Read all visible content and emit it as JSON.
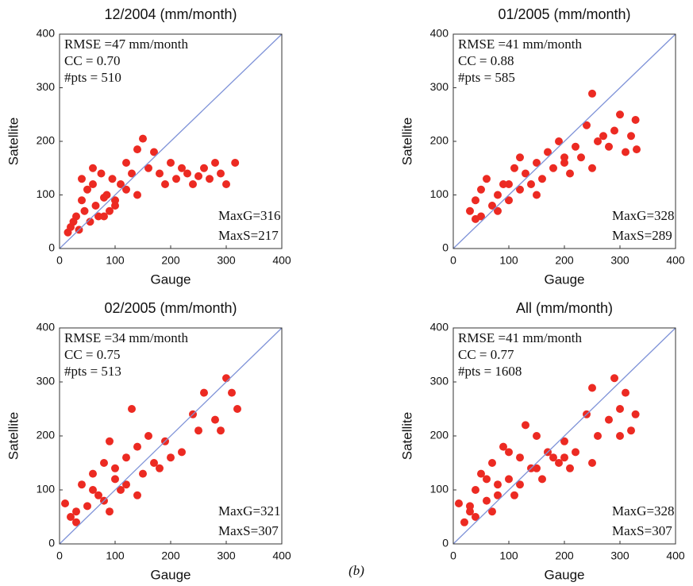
{
  "chart_data": [
    {
      "type": "scatter",
      "title": "12/2004 (mm/month)",
      "xlabel": "Gauge",
      "ylabel": "Satellite",
      "annotations": [
        "RMSE =47 mm/month",
        "CC = 0.70",
        "#pts = 510",
        "MaxG=316",
        "MaxS=217"
      ],
      "xlim": [
        0,
        400
      ],
      "ylim": [
        0,
        400
      ],
      "xticks": [
        0,
        100,
        200,
        300,
        400
      ],
      "yticks": [
        0,
        100,
        200,
        300,
        400
      ],
      "color": "#ec2a22",
      "line_color": "#7f93d8",
      "series": [
        {
          "x": [
            20,
            30,
            35,
            40,
            45,
            50,
            55,
            60,
            65,
            70,
            75,
            80,
            85,
            90,
            95,
            100,
            110,
            120,
            130,
            140,
            150,
            160,
            170,
            180,
            190,
            200,
            210,
            220,
            230,
            240,
            250,
            260,
            270,
            280,
            290,
            300,
            316,
            40,
            60,
            80,
            100,
            120,
            140,
            15,
            25
          ],
          "values": [
            40,
            60,
            35,
            90,
            70,
            110,
            50,
            120,
            80,
            60,
            140,
            95,
            100,
            70,
            130,
            90,
            120,
            160,
            140,
            185,
            205,
            150,
            180,
            140,
            120,
            160,
            130,
            150,
            140,
            120,
            135,
            150,
            130,
            160,
            140,
            120,
            160,
            130,
            150,
            60,
            80,
            110,
            100,
            30,
            50
          ]
        }
      ]
    },
    {
      "type": "scatter",
      "title": "01/2005 (mm/month)",
      "xlabel": "Gauge",
      "ylabel": "Satellite",
      "annotations": [
        "RMSE =41 mm/month",
        "CC = 0.88",
        "#pts = 585",
        "MaxG=328",
        "MaxS=289"
      ],
      "xlim": [
        0,
        400
      ],
      "ylim": [
        0,
        400
      ],
      "xticks": [
        0,
        100,
        200,
        300,
        400
      ],
      "yticks": [
        0,
        100,
        200,
        300,
        400
      ],
      "color": "#ec2a22",
      "line_color": "#7f93d8",
      "series": [
        {
          "x": [
            30,
            40,
            50,
            60,
            70,
            80,
            90,
            100,
            110,
            120,
            130,
            140,
            150,
            160,
            170,
            180,
            190,
            200,
            210,
            220,
            230,
            240,
            250,
            260,
            270,
            280,
            290,
            300,
            310,
            320,
            328,
            330,
            50,
            80,
            120,
            150,
            200,
            250,
            40,
            100
          ],
          "values": [
            70,
            90,
            60,
            130,
            80,
            100,
            120,
            90,
            150,
            110,
            140,
            120,
            160,
            130,
            180,
            150,
            200,
            170,
            140,
            190,
            170,
            230,
            289,
            200,
            210,
            190,
            220,
            250,
            180,
            210,
            240,
            185,
            110,
            70,
            170,
            100,
            160,
            150,
            55,
            120
          ]
        }
      ]
    },
    {
      "type": "scatter",
      "title": "02/2005 (mm/month)",
      "xlabel": "Gauge",
      "ylabel": "Satellite",
      "annotations": [
        "RMSE =34 mm/month",
        "CC = 0.75",
        "#pts = 513",
        "MaxG=321",
        "MaxS=307"
      ],
      "xlim": [
        0,
        400
      ],
      "ylim": [
        0,
        400
      ],
      "xticks": [
        0,
        100,
        200,
        300,
        400
      ],
      "yticks": [
        0,
        100,
        200,
        300,
        400
      ],
      "color": "#ec2a22",
      "line_color": "#7f93d8",
      "series": [
        {
          "x": [
            10,
            20,
            30,
            40,
            50,
            60,
            70,
            80,
            90,
            100,
            110,
            120,
            130,
            140,
            150,
            160,
            170,
            180,
            190,
            200,
            220,
            240,
            260,
            280,
            300,
            310,
            320,
            60,
            80,
            100,
            120,
            140,
            30,
            90,
            250,
            290
          ],
          "values": [
            75,
            50,
            40,
            110,
            70,
            130,
            90,
            150,
            60,
            120,
            100,
            160,
            250,
            180,
            130,
            200,
            150,
            140,
            190,
            160,
            170,
            240,
            280,
            230,
            307,
            280,
            250,
            100,
            80,
            140,
            110,
            90,
            60,
            190,
            210,
            210
          ]
        }
      ]
    },
    {
      "type": "scatter",
      "title": "All (mm/month)",
      "xlabel": "Gauge",
      "ylabel": "Satellite",
      "annotations": [
        "RMSE =41 mm/month",
        "CC = 0.77",
        "#pts = 1608",
        "MaxG=328",
        "MaxS=307"
      ],
      "xlim": [
        0,
        400
      ],
      "ylim": [
        0,
        400
      ],
      "xticks": [
        0,
        100,
        200,
        300,
        400
      ],
      "yticks": [
        0,
        100,
        200,
        300,
        400
      ],
      "color": "#ec2a22",
      "line_color": "#7f93d8",
      "series": [
        {
          "x": [
            10,
            20,
            30,
            40,
            50,
            60,
            70,
            80,
            90,
            100,
            110,
            120,
            130,
            140,
            150,
            160,
            170,
            180,
            190,
            200,
            210,
            220,
            240,
            250,
            260,
            280,
            290,
            300,
            310,
            320,
            328,
            40,
            60,
            80,
            100,
            120,
            150,
            200,
            250,
            300,
            30,
            70
          ],
          "values": [
            75,
            40,
            60,
            100,
            130,
            80,
            150,
            110,
            180,
            120,
            90,
            160,
            220,
            140,
            200,
            120,
            170,
            160,
            150,
            190,
            140,
            170,
            240,
            289,
            200,
            230,
            307,
            250,
            280,
            210,
            240,
            50,
            120,
            90,
            170,
            110,
            140,
            160,
            150,
            200,
            70,
            60
          ]
        }
      ]
    }
  ],
  "caption": "(b)"
}
